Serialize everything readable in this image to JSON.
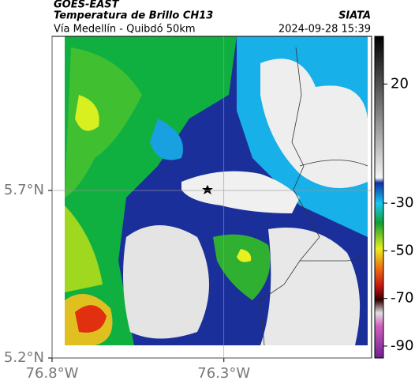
{
  "header": {
    "source": "GOES-EAST",
    "product": "Temperatura de Brillo CH13",
    "route": "Vía Medellín - Quibdó 50km",
    "org": "SIATA",
    "timestamp": "2024-09-28 15:39"
  },
  "map": {
    "xlim": [
      -76.8,
      -75.87
    ],
    "ylim": [
      5.2,
      6.16
    ],
    "xticks": [
      {
        "value": -76.8,
        "label": "76.8°W"
      },
      {
        "value": -76.3,
        "label": "76.3°W"
      }
    ],
    "yticks": [
      {
        "value": 5.7,
        "label": "5.7°N"
      },
      {
        "value": 5.2,
        "label": "5.2°N"
      }
    ]
  },
  "colorbar": {
    "lim": [
      -95,
      40
    ],
    "ticks": [
      20,
      -30,
      -50,
      -70,
      -90
    ]
  }
}
